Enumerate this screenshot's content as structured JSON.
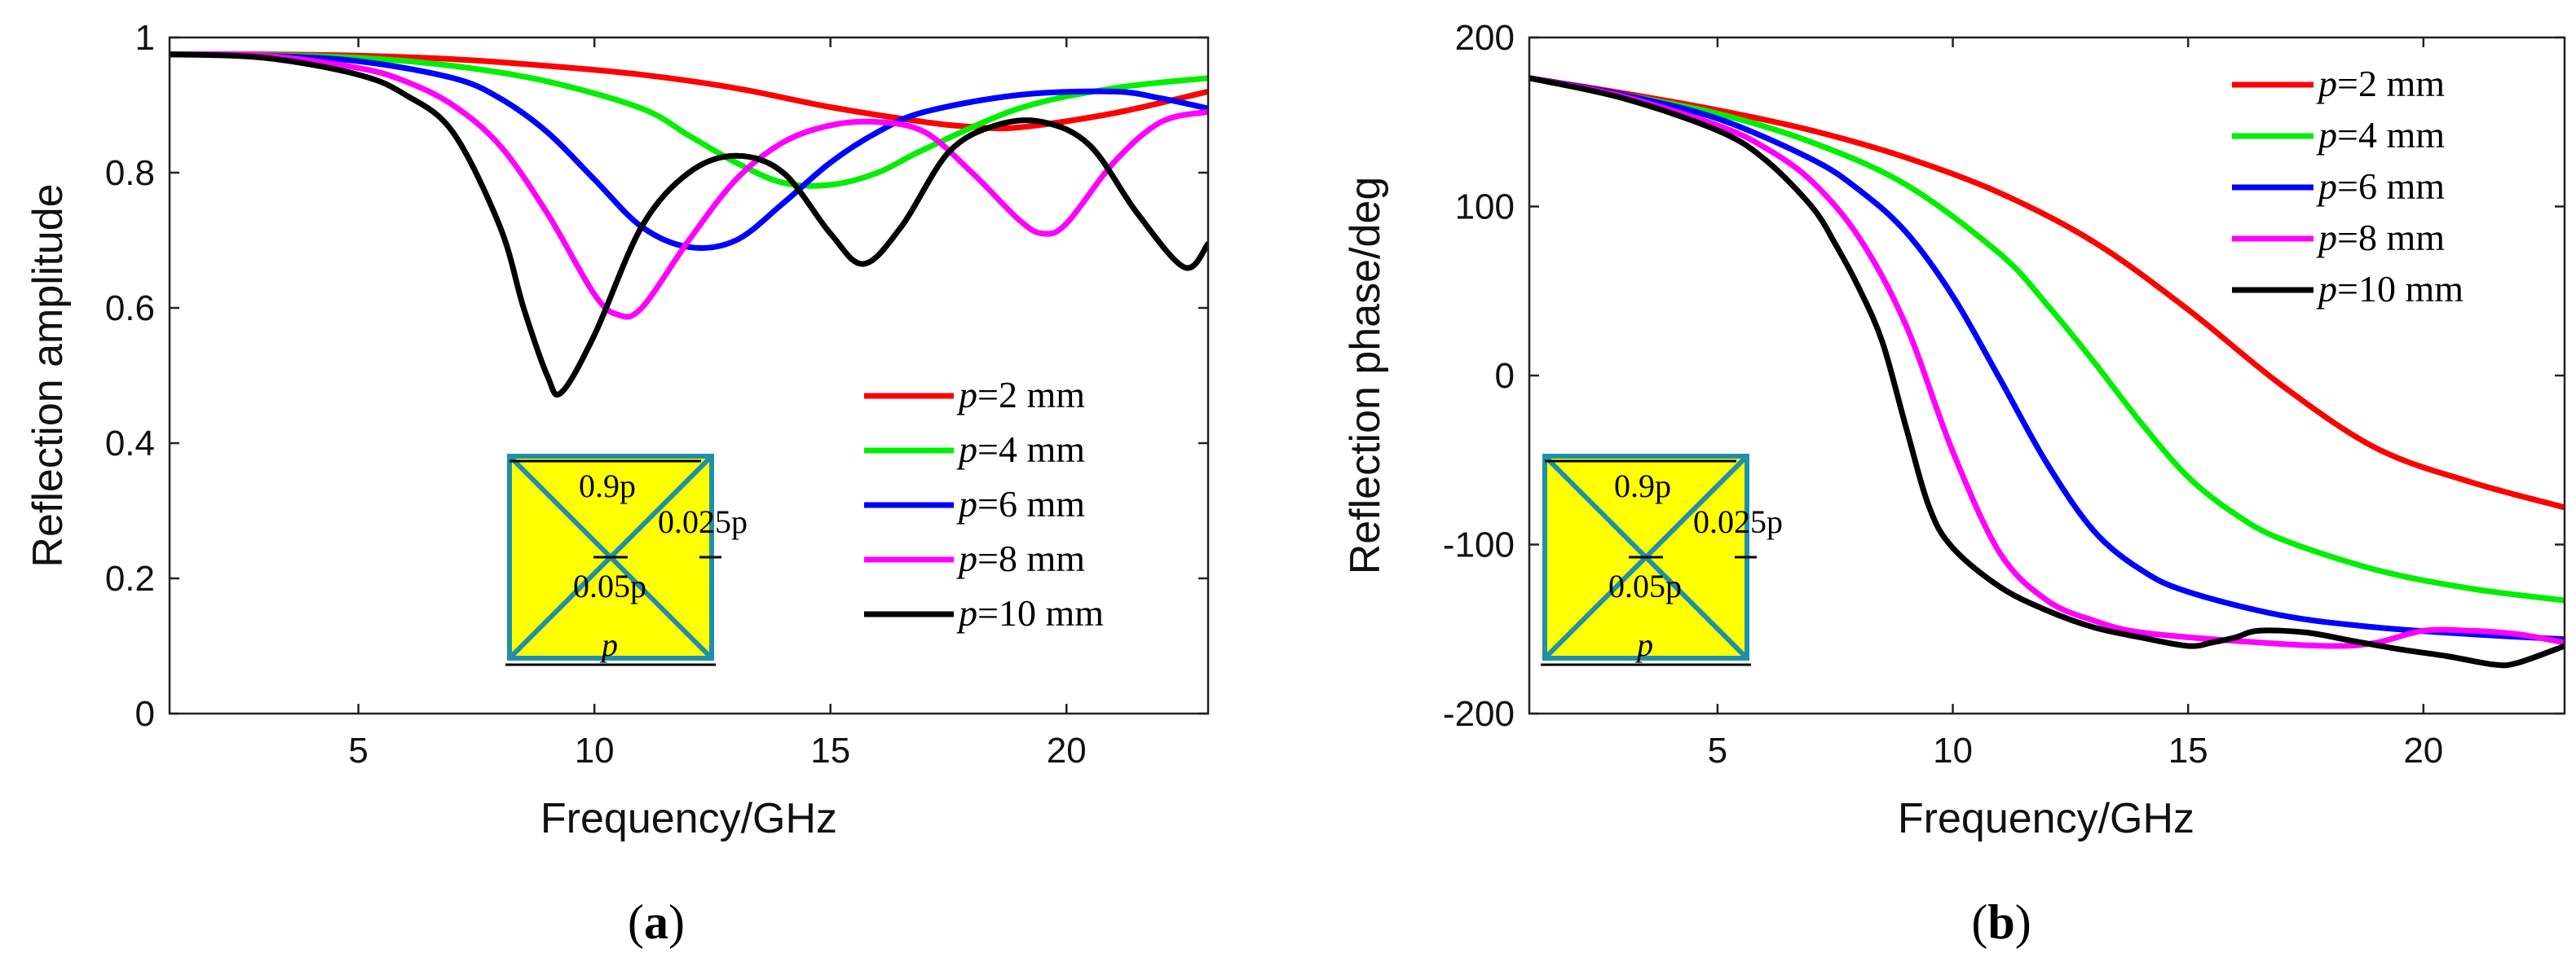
{
  "chart_data": [
    {
      "id": "a",
      "type": "line",
      "caption_letter": "a",
      "xlabel": "Frequency/GHz",
      "ylabel": "Reflection amplitude",
      "xlim": [
        1,
        23
      ],
      "ylim": [
        0,
        1
      ],
      "xticks": [
        5,
        10,
        15,
        20
      ],
      "yticks": [
        0,
        0.2,
        0.4,
        0.6,
        0.8,
        1
      ],
      "ytick_labels": [
        "0",
        "0.2",
        "0.4",
        "0.6",
        "0.8",
        "1"
      ],
      "legend_position": "bottom-right",
      "series": [
        {
          "name": "p=2 mm",
          "p": "p",
          "rest": "=2 mm",
          "color": "#ff0000",
          "x": [
            1,
            3,
            5,
            7,
            9,
            11,
            13,
            15,
            17,
            18,
            19,
            21,
            23
          ],
          "y": [
            0.975,
            0.975,
            0.973,
            0.968,
            0.958,
            0.945,
            0.925,
            0.897,
            0.875,
            0.868,
            0.867,
            0.888,
            0.92
          ]
        },
        {
          "name": "p=4 mm",
          "p": "p",
          "rest": "=4 mm",
          "color": "#00ee00",
          "x": [
            1,
            3,
            5,
            7,
            9,
            11,
            12,
            13,
            14,
            15,
            16,
            17,
            19,
            21,
            23
          ],
          "y": [
            0.975,
            0.974,
            0.97,
            0.958,
            0.935,
            0.895,
            0.855,
            0.815,
            0.785,
            0.782,
            0.8,
            0.835,
            0.895,
            0.925,
            0.94
          ]
        },
        {
          "name": "p=6 mm",
          "p": "p",
          "rest": "=6 mm",
          "color": "#0000ff",
          "x": [
            1,
            3,
            5,
            7,
            8,
            9,
            10,
            11,
            12,
            13,
            14,
            15,
            16,
            17,
            19,
            21,
            22,
            23
          ],
          "y": [
            0.975,
            0.973,
            0.965,
            0.94,
            0.91,
            0.86,
            0.79,
            0.72,
            0.69,
            0.7,
            0.755,
            0.815,
            0.86,
            0.89,
            0.915,
            0.92,
            0.91,
            0.895
          ]
        },
        {
          "name": "p=8 mm",
          "p": "p",
          "rest": "=8 mm",
          "color": "#ff00ff",
          "x": [
            1,
            3,
            5,
            6,
            7,
            8,
            9,
            10,
            10.5,
            11,
            12,
            13,
            14,
            15,
            16,
            17,
            18,
            19,
            19.5,
            20,
            21,
            22,
            23
          ],
          "y": [
            0.975,
            0.973,
            0.955,
            0.935,
            0.9,
            0.84,
            0.74,
            0.62,
            0.59,
            0.6,
            0.7,
            0.79,
            0.845,
            0.87,
            0.875,
            0.86,
            0.8,
            0.73,
            0.71,
            0.725,
            0.815,
            0.875,
            0.89
          ]
        },
        {
          "name": "p=10 mm",
          "p": "p",
          "rest": "=10 mm",
          "color": "#000000",
          "x": [
            1,
            3,
            5,
            6,
            7,
            8,
            8.5,
            9,
            9.3,
            10,
            11,
            12,
            13,
            14,
            15,
            15.7,
            16.5,
            17.5,
            18.5,
            19.5,
            20.5,
            21.5,
            22.5,
            23
          ],
          "y": [
            0.975,
            0.97,
            0.945,
            0.915,
            0.86,
            0.72,
            0.6,
            0.5,
            0.475,
            0.56,
            0.72,
            0.8,
            0.825,
            0.8,
            0.71,
            0.665,
            0.72,
            0.83,
            0.87,
            0.875,
            0.84,
            0.74,
            0.66,
            0.695
          ]
        }
      ],
      "inset": {
        "label_width": "0.9p",
        "label_gap": "0.05p",
        "label_edge": "0.025p",
        "label_period": "p"
      }
    },
    {
      "id": "b",
      "type": "line",
      "caption_letter": "b",
      "xlabel": "Frequency/GHz",
      "ylabel": "Reflection phase/deg",
      "xlim": [
        1,
        23
      ],
      "ylim": [
        -200,
        200
      ],
      "xticks": [
        5,
        10,
        15,
        20
      ],
      "yticks": [
        -200,
        -100,
        0,
        100,
        200
      ],
      "ytick_labels": [
        "-200",
        "-100",
        "0",
        "100",
        "200"
      ],
      "legend_position": "top-right",
      "series": [
        {
          "name": "p=2 mm",
          "p": "p",
          "rest": "=2 mm",
          "color": "#ff0000",
          "x": [
            1,
            3,
            5,
            7,
            9,
            11,
            13,
            15,
            17,
            19,
            21,
            23
          ],
          "y": [
            176,
            167,
            157,
            145,
            129,
            108,
            79,
            39,
            -6,
            -43,
            -63,
            -78
          ]
        },
        {
          "name": "p=4 mm",
          "p": "p",
          "rest": "=4 mm",
          "color": "#00ee00",
          "x": [
            1,
            3,
            5,
            7,
            9,
            11,
            12,
            13,
            14,
            15,
            16,
            17,
            19,
            21,
            23
          ],
          "y": [
            176,
            166,
            155,
            138,
            113,
            72,
            42,
            8,
            -28,
            -60,
            -82,
            -97,
            -115,
            -126,
            -133
          ]
        },
        {
          "name": "p=6 mm",
          "p": "p",
          "rest": "=6 mm",
          "color": "#0000ff",
          "x": [
            1,
            3,
            5,
            7,
            8,
            9,
            10,
            11,
            12,
            13,
            14,
            15,
            17,
            19,
            21,
            23
          ],
          "y": [
            176,
            166,
            152,
            128,
            110,
            85,
            47,
            -2,
            -52,
            -92,
            -115,
            -128,
            -142,
            -149,
            -153,
            -156
          ]
        },
        {
          "name": "p=8 mm",
          "p": "p",
          "rest": "=8 mm",
          "color": "#ff00ff",
          "x": [
            1,
            3,
            5,
            6,
            7,
            8,
            9,
            10,
            11,
            12,
            13,
            14,
            16,
            18,
            19,
            20,
            21,
            22,
            23
          ],
          "y": [
            176,
            165,
            148,
            135,
            115,
            82,
            30,
            -45,
            -105,
            -133,
            -145,
            -152,
            -157,
            -160,
            -158,
            -151,
            -151,
            -153,
            -158
          ]
        },
        {
          "name": "p=10 mm",
          "p": "p",
          "rest": "=10 mm",
          "color": "#000000",
          "x": [
            1,
            3,
            5,
            6,
            7,
            7.5,
            8,
            8.5,
            9,
            9.5,
            10,
            11,
            12,
            13,
            14,
            15,
            15.5,
            16,
            16.5,
            17.5,
            18.5,
            19.5,
            20.5,
            21.5,
            22,
            23
          ],
          "y": [
            176,
            164,
            145,
            128,
            100,
            78,
            52,
            20,
            -30,
            -78,
            -102,
            -125,
            -139,
            -149,
            -155,
            -160,
            -158,
            -155,
            -151,
            -152,
            -157,
            -162,
            -166,
            -171,
            -170,
            -160
          ]
        }
      ],
      "inset": {
        "label_width": "0.9p",
        "label_gap": "0.05p",
        "label_edge": "0.025p",
        "label_period": "p"
      }
    }
  ]
}
